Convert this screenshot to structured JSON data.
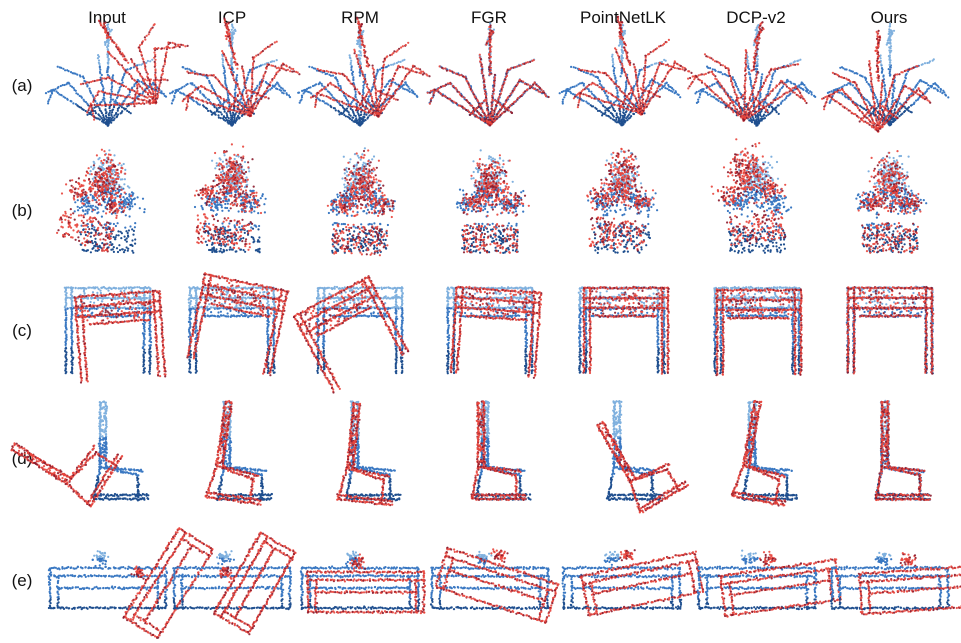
{
  "figure": {
    "columns": [
      "Input",
      "ICP",
      "RPM",
      "FGR",
      "PointNetLK",
      "DCP-v2",
      "Ours"
    ],
    "rows": [
      "(a)",
      "(b)",
      "(c)",
      "(d)",
      "(e)"
    ],
    "row_objects": [
      "plant",
      "flower-pot",
      "table",
      "chair",
      "desk"
    ],
    "colors": {
      "source_red": "#e8453c",
      "source_dark_red": "#8b1a2b",
      "target_blue": "#3a78c2",
      "target_light_blue": "#7fb0de",
      "target_dark_blue": "#1f4f8f"
    }
  }
}
